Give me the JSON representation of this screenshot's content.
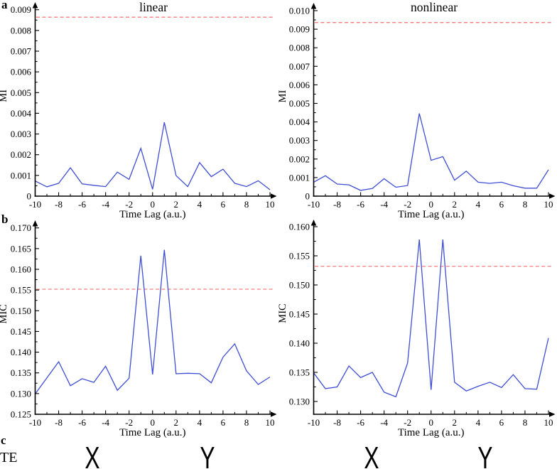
{
  "figure_labels": {
    "panel_a": "a",
    "panel_b": "b",
    "panel_c": "c",
    "te": "TE",
    "letters": [
      "X",
      "Y",
      "X",
      "Y"
    ]
  },
  "colors": {
    "data_line": "#3f4ed4",
    "threshold_line": "#f87d7d",
    "axis": "#000000"
  },
  "chart_data": [
    {
      "id": "mi-linear",
      "type": "line",
      "title": "linear",
      "xlabel": "Time Lag (a.u.)",
      "ylabel": "MI",
      "grid": false,
      "legend": null,
      "xlim": [
        -10,
        10
      ],
      "ylim": [
        0,
        0.009
      ],
      "x": [
        -10,
        -9,
        -8,
        -7,
        -6,
        -5,
        -4,
        -3,
        -2,
        -1,
        0,
        1,
        2,
        3,
        4,
        5,
        6,
        7,
        8,
        9,
        10
      ],
      "values": [
        0.00073,
        0.00045,
        0.00062,
        0.00137,
        0.00059,
        0.00052,
        0.00046,
        0.00116,
        0.00081,
        0.00231,
        0.00033,
        0.00356,
        0.00099,
        0.00046,
        0.00162,
        0.00094,
        0.0013,
        0.00062,
        0.00046,
        0.00074,
        0.00031
      ],
      "threshold": 0.00864,
      "threshold_style": "dashed",
      "yticks": [
        {
          "v": 0,
          "label": "0"
        },
        {
          "v": 0.001,
          "label": "0.001"
        },
        {
          "v": 0.002,
          "label": "0.002"
        },
        {
          "v": 0.003,
          "label": "0.003"
        },
        {
          "v": 0.004,
          "label": "0.004"
        },
        {
          "v": 0.005,
          "label": "0.005"
        },
        {
          "v": 0.006,
          "label": "0.006"
        },
        {
          "v": 0.007,
          "label": "0.007"
        },
        {
          "v": 0.008,
          "label": "0.008"
        },
        {
          "v": 0.009,
          "label": "0.009"
        }
      ],
      "xticks": [
        {
          "v": -10,
          "label": "-10"
        },
        {
          "v": -8,
          "label": "-8"
        },
        {
          "v": -6,
          "label": "-6"
        },
        {
          "v": -4,
          "label": "-4"
        },
        {
          "v": -2,
          "label": "-2"
        },
        {
          "v": 0,
          "label": "0"
        },
        {
          "v": 2,
          "label": "2"
        },
        {
          "v": 4,
          "label": "4"
        },
        {
          "v": 6,
          "label": "6"
        },
        {
          "v": 8,
          "label": "8"
        },
        {
          "v": 10,
          "label": "10"
        }
      ]
    },
    {
      "id": "mi-nonlinear",
      "type": "line",
      "title": "nonlinear",
      "xlabel": "Time Lag (a.u.)",
      "ylabel": "MI",
      "grid": false,
      "legend": null,
      "xlim": [
        -10,
        10
      ],
      "ylim": [
        0,
        0.01
      ],
      "x": [
        -10,
        -9,
        -8,
        -7,
        -6,
        -5,
        -4,
        -3,
        -2,
        -1,
        0,
        1,
        2,
        3,
        4,
        5,
        6,
        7,
        8,
        9,
        10
      ],
      "values": [
        0.00075,
        0.0011,
        0.00065,
        0.00061,
        0.00031,
        0.00041,
        0.00094,
        0.00048,
        0.00057,
        0.00446,
        0.00193,
        0.00213,
        0.00086,
        0.00135,
        0.00075,
        0.00069,
        0.00075,
        0.00056,
        0.00043,
        0.00043,
        0.00142
      ],
      "threshold": 0.00936,
      "threshold_style": "dashed",
      "yticks": [
        {
          "v": 0,
          "label": "0"
        },
        {
          "v": 0.001,
          "label": "0.001"
        },
        {
          "v": 0.002,
          "label": "0.002"
        },
        {
          "v": 0.003,
          "label": "0.003"
        },
        {
          "v": 0.004,
          "label": "0.004"
        },
        {
          "v": 0.005,
          "label": "0.005"
        },
        {
          "v": 0.006,
          "label": "0.006"
        },
        {
          "v": 0.007,
          "label": "0.007"
        },
        {
          "v": 0.008,
          "label": "0.008"
        },
        {
          "v": 0.009,
          "label": "0.009"
        },
        {
          "v": 0.01,
          "label": "0.010"
        }
      ],
      "xticks": [
        {
          "v": -10,
          "label": "-10"
        },
        {
          "v": -8,
          "label": "-8"
        },
        {
          "v": -6,
          "label": "-6"
        },
        {
          "v": -4,
          "label": "-4"
        },
        {
          "v": -2,
          "label": "-2"
        },
        {
          "v": 0,
          "label": "0"
        },
        {
          "v": 2,
          "label": "2"
        },
        {
          "v": 4,
          "label": "4"
        },
        {
          "v": 6,
          "label": "6"
        },
        {
          "v": 8,
          "label": "8"
        },
        {
          "v": 10,
          "label": "10"
        }
      ]
    },
    {
      "id": "mic-linear",
      "type": "line",
      "title": "",
      "xlabel": "Time Lag (a.u.)",
      "ylabel": "MIC",
      "grid": false,
      "legend": null,
      "xlim": [
        -10,
        10
      ],
      "ylim": [
        0.125,
        0.17
      ],
      "x": [
        -10,
        -9,
        -8,
        -7,
        -6,
        -5,
        -4,
        -3,
        -2,
        -1,
        0,
        1,
        2,
        3,
        4,
        5,
        6,
        7,
        8,
        9,
        10
      ],
      "values": [
        0.1299,
        0.1338,
        0.1377,
        0.1319,
        0.1336,
        0.1327,
        0.1366,
        0.1308,
        0.1337,
        0.1633,
        0.1346,
        0.1647,
        0.1348,
        0.1349,
        0.1348,
        0.1326,
        0.1388,
        0.142,
        0.1355,
        0.1322,
        0.134
      ],
      "threshold": 0.1552,
      "threshold_style": "dashed",
      "yticks": [
        {
          "v": 0.125,
          "label": "0.125"
        },
        {
          "v": 0.13,
          "label": "0.130"
        },
        {
          "v": 0.135,
          "label": "0.135"
        },
        {
          "v": 0.14,
          "label": "0.140"
        },
        {
          "v": 0.145,
          "label": "0.145"
        },
        {
          "v": 0.15,
          "label": "0.150"
        },
        {
          "v": 0.155,
          "label": "0.155"
        },
        {
          "v": 0.16,
          "label": "0.160"
        },
        {
          "v": 0.165,
          "label": "0.165"
        },
        {
          "v": 0.17,
          "label": "0.170"
        }
      ],
      "xticks": [
        {
          "v": -10,
          "label": "-10"
        },
        {
          "v": -8,
          "label": "-8"
        },
        {
          "v": -6,
          "label": "-6"
        },
        {
          "v": -4,
          "label": "-4"
        },
        {
          "v": -2,
          "label": "-2"
        },
        {
          "v": 0,
          "label": "0"
        },
        {
          "v": 2,
          "label": "2"
        },
        {
          "v": 4,
          "label": "4"
        },
        {
          "v": 6,
          "label": "6"
        },
        {
          "v": 8,
          "label": "8"
        },
        {
          "v": 10,
          "label": "10"
        }
      ]
    },
    {
      "id": "mic-nonlinear",
      "type": "line",
      "title": "",
      "xlabel": "Time Lag (a.u.)",
      "ylabel": "MIC",
      "grid": false,
      "legend": null,
      "xlim": [
        -10,
        10
      ],
      "ylim": [
        0.1278,
        0.16
      ],
      "x": [
        -10,
        -9,
        -8,
        -7,
        -6,
        -5,
        -4,
        -3,
        -2,
        -1,
        0,
        1,
        2,
        3,
        4,
        5,
        6,
        7,
        8,
        9,
        10
      ],
      "values": [
        0.1349,
        0.1322,
        0.1325,
        0.1361,
        0.1341,
        0.135,
        0.1316,
        0.1308,
        0.1366,
        0.1578,
        0.132,
        0.1578,
        0.1333,
        0.1318,
        0.1326,
        0.1333,
        0.1324,
        0.1346,
        0.1322,
        0.1321,
        0.1409
      ],
      "threshold": 0.1532,
      "threshold_style": "dashed",
      "yticks": [
        {
          "v": 0.13,
          "label": "0.130"
        },
        {
          "v": 0.135,
          "label": "0.135"
        },
        {
          "v": 0.14,
          "label": "0.140"
        },
        {
          "v": 0.145,
          "label": "0.145"
        },
        {
          "v": 0.15,
          "label": "0.150"
        },
        {
          "v": 0.155,
          "label": "0.155"
        },
        {
          "v": 0.16,
          "label": "0.160"
        }
      ],
      "xticks": [
        {
          "v": -10,
          "label": "-10"
        },
        {
          "v": -8,
          "label": "-8"
        },
        {
          "v": -6,
          "label": "-6"
        },
        {
          "v": -4,
          "label": "-4"
        },
        {
          "v": -2,
          "label": "-2"
        },
        {
          "v": 0,
          "label": "0"
        },
        {
          "v": 2,
          "label": "2"
        },
        {
          "v": 4,
          "label": "4"
        },
        {
          "v": 6,
          "label": "6"
        },
        {
          "v": 8,
          "label": "8"
        },
        {
          "v": 10,
          "label": "10"
        }
      ]
    }
  ]
}
